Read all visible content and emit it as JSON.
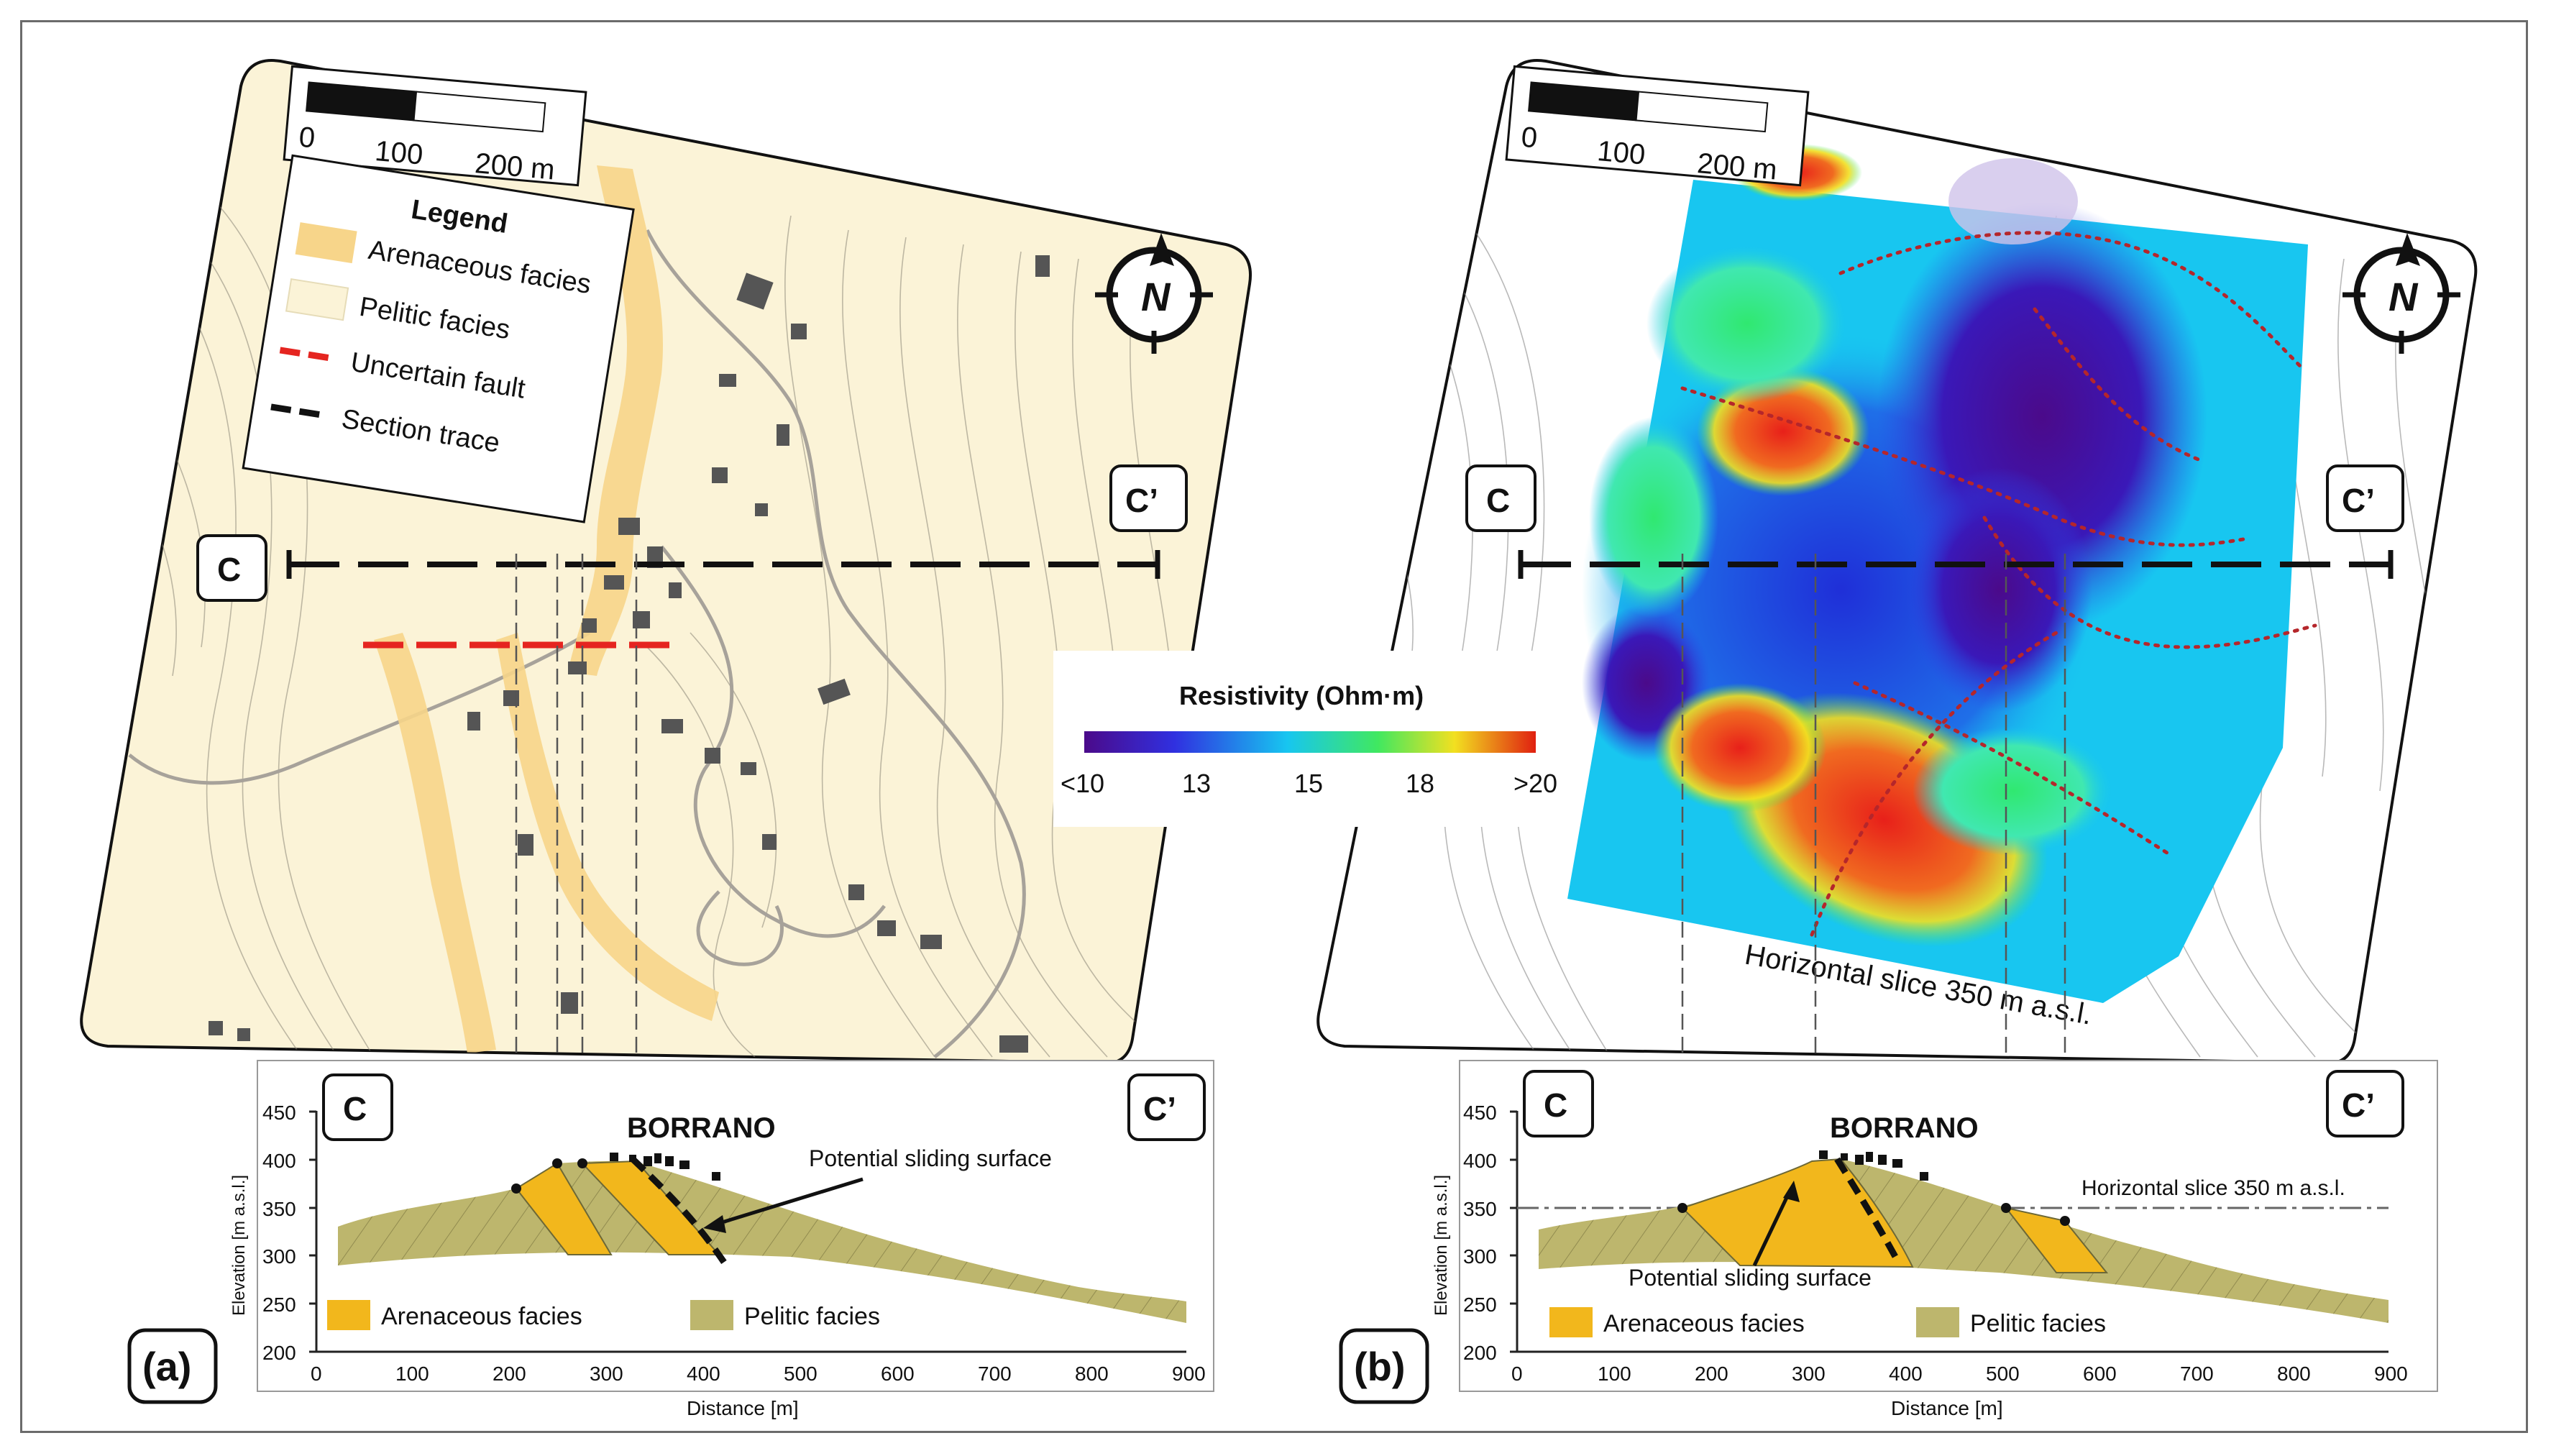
{
  "panel_a": {
    "label": "(a)",
    "scale_bar": {
      "ticks": [
        "0",
        "100",
        "200 m"
      ]
    },
    "north_arrow": "N",
    "legend": {
      "title": "Legend",
      "items": [
        {
          "label": "Arenaceous facies",
          "color": "#f7d58a"
        },
        {
          "label": "Pelitic facies",
          "color": "#fbf3d7"
        },
        {
          "label": "Uncertain fault",
          "color": "#e52520"
        },
        {
          "label": "Section trace",
          "color": "#111111"
        }
      ]
    },
    "section_start": "C",
    "section_end": "C’",
    "cross_section": {
      "start": "C",
      "end": "C’",
      "town": "BORRANO",
      "annotation": "Potential sliding surface",
      "ylabel": "Elevation [m a.s.l.]",
      "xlabel": "Distance [m]",
      "y_ticks": [
        "450",
        "400",
        "350",
        "300",
        "250",
        "200"
      ],
      "x_ticks": [
        "0",
        "100",
        "200",
        "300",
        "400",
        "500",
        "600",
        "700",
        "800",
        "900"
      ],
      "legend": [
        {
          "label": "Arenaceous facies",
          "color": "#f2b71c"
        },
        {
          "label": "Pelitic facies",
          "color": "#bdb66d"
        }
      ]
    }
  },
  "panel_b": {
    "label": "(b)",
    "scale_bar": {
      "ticks": [
        "0",
        "100",
        "200 m"
      ]
    },
    "north_arrow": "N",
    "section_start": "C",
    "section_end": "C’",
    "slice_label": "Horizontal slice 350 m a.s.l.",
    "colorbar": {
      "title": "Resistivity (Ohm·m)",
      "ticks": [
        "<10",
        "13",
        "15",
        "18",
        ">20"
      ],
      "colors": [
        "#4b0a8a",
        "#3030e0",
        "#17c6f0",
        "#40e860",
        "#f2e020",
        "#e02010"
      ]
    },
    "cross_section": {
      "start": "C",
      "end": "C’",
      "town": "BORRANO",
      "annotation": "Potential sliding surface",
      "slice_line_label": "Horizontal slice 350 m a.s.l.",
      "ylabel": "Elevation [m a.s.l.]",
      "xlabel": "Distance [m]",
      "y_ticks": [
        "450",
        "400",
        "350",
        "300",
        "250",
        "200"
      ],
      "x_ticks": [
        "0",
        "100",
        "200",
        "300",
        "400",
        "500",
        "600",
        "700",
        "800",
        "900"
      ],
      "legend": [
        {
          "label": "Arenaceous facies",
          "color": "#f2b71c"
        },
        {
          "label": "Pelitic facies",
          "color": "#bdb66d"
        }
      ]
    }
  }
}
